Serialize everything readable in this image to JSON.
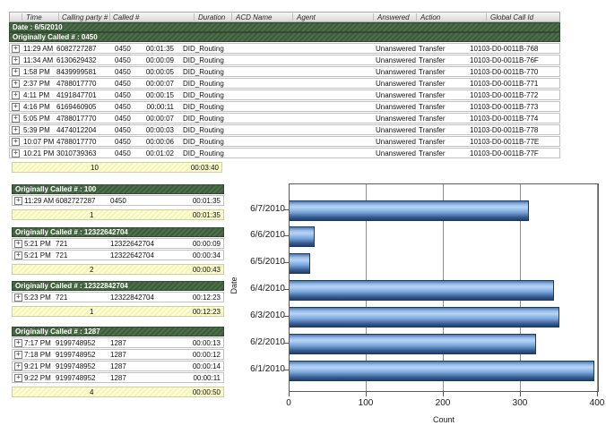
{
  "icons": {
    "expand_icon": "+"
  },
  "top_table": {
    "columns": [
      "Time",
      "Calling party #",
      "Called #",
      "Duration",
      "ACD Name",
      "Agent",
      "Answered",
      "Action",
      "Global Call Id"
    ],
    "date_header": "Date : 6/5/2010",
    "group_header": "Originally Called # : 0450",
    "rows": [
      {
        "time": "11:29 AM",
        "calling": "6082727287",
        "called": "0450",
        "duration": "00:01:35",
        "acd": "DID_Routing",
        "agent": "",
        "answered": "Unanswered",
        "action": "Transfer",
        "global_id": "10103-D0-0011B-768"
      },
      {
        "time": "11:34 AM",
        "calling": "6130629432",
        "called": "0450",
        "duration": "00:00:09",
        "acd": "DID_Routing",
        "agent": "",
        "answered": "Unanswered",
        "action": "Transfer",
        "global_id": "10103-D0-0011B-76F"
      },
      {
        "time": "1:58 PM",
        "calling": "8439999581",
        "called": "0450",
        "duration": "00:00:05",
        "acd": "DID_Routing",
        "agent": "",
        "answered": "Unanswered",
        "action": "Transfer",
        "global_id": "10103-D0-0011B-770"
      },
      {
        "time": "2:37 PM",
        "calling": "4788017770",
        "called": "0450",
        "duration": "00:00:07",
        "acd": "DID_Routing",
        "agent": "",
        "answered": "Unanswered",
        "action": "Transfer",
        "global_id": "10103-D0-0011B-771"
      },
      {
        "time": "4:11 PM",
        "calling": "4191847701",
        "called": "0450",
        "duration": "00:00:15",
        "acd": "DID_Routing",
        "agent": "",
        "answered": "Unanswered",
        "action": "Transfer",
        "global_id": "10103-D0-0011B-772"
      },
      {
        "time": "4:16 PM",
        "calling": "6169460905",
        "called": "0450",
        "duration": "00:00:11",
        "acd": "DID_Routing",
        "agent": "",
        "answered": "Unanswered",
        "action": "Transfer",
        "global_id": "10103-D0-0011B-773"
      },
      {
        "time": "5:05 PM",
        "calling": "4788017770",
        "called": "0450",
        "duration": "00:00:07",
        "acd": "DID_Routing",
        "agent": "",
        "answered": "Unanswered",
        "action": "Transfer",
        "global_id": "10103-D0-0011B-774"
      },
      {
        "time": "5:39 PM",
        "calling": "4474012204",
        "called": "0450",
        "duration": "00:00:03",
        "acd": "DID_Routing",
        "agent": "",
        "answered": "Unanswered",
        "action": "Transfer",
        "global_id": "10103-D0-0011B-778"
      },
      {
        "time": "10:07 PM",
        "calling": "4788017770",
        "called": "0450",
        "duration": "00:00:06",
        "acd": "DID_Routing",
        "agent": "",
        "answered": "Unanswered",
        "action": "Transfer",
        "global_id": "10103-D0-0011B-77E"
      },
      {
        "time": "10:21 PM",
        "calling": "3010739363",
        "called": "0450",
        "duration": "00:01:02",
        "acd": "DID_Routing",
        "agent": "",
        "answered": "Unanswered",
        "action": "Transfer",
        "global_id": "10103-D0-0011B-77F"
      }
    ],
    "summary": {
      "count": "10",
      "duration": "00:03:40"
    }
  },
  "groups": [
    {
      "header": "Originally Called # : 100",
      "rows": [
        {
          "time": "11:29 AM",
          "calling": "6082727287",
          "called": "0450",
          "duration": "00:01:35"
        }
      ],
      "summary": {
        "count": "1",
        "duration": "00:01:35"
      }
    },
    {
      "header": "Originally Called # : 12322642704",
      "rows": [
        {
          "time": "5:21 PM",
          "calling": "721",
          "called": "12322642704",
          "duration": "00:00:09"
        },
        {
          "time": "5:21 PM",
          "calling": "721",
          "called": "12322642704",
          "duration": "00:00:34"
        }
      ],
      "summary": {
        "count": "2",
        "duration": "00:00:43"
      }
    },
    {
      "header": "Originally Called # : 12322842704",
      "rows": [
        {
          "time": "5:23 PM",
          "calling": "721",
          "called": "12322842704",
          "duration": "00:12:23"
        }
      ],
      "summary": {
        "count": "1",
        "duration": "00:12:23"
      }
    },
    {
      "header": "Originally Called # : 1287",
      "rows": [
        {
          "time": "7:17 PM",
          "calling": "9199748952",
          "called": "1287",
          "duration": "00:00:13"
        },
        {
          "time": "7:18 PM",
          "calling": "9199748952",
          "called": "1287",
          "duration": "00:00:12"
        },
        {
          "time": "9:21 PM",
          "calling": "9199748952",
          "called": "1287",
          "duration": "00:00:14"
        },
        {
          "time": "9:22 PM",
          "calling": "9199748952",
          "called": "1287",
          "duration": "00:00:11"
        }
      ],
      "summary": {
        "count": "4",
        "duration": "00:00:50"
      }
    }
  ],
  "chart_data": {
    "type": "bar",
    "orientation": "horizontal",
    "categories": [
      "6/7/2010",
      "6/6/2010",
      "6/5/2010",
      "6/4/2010",
      "6/3/2010",
      "6/2/2010",
      "6/1/2010"
    ],
    "values": [
      310,
      32,
      27,
      343,
      350,
      320,
      395
    ],
    "title": "",
    "xlabel": "Count",
    "ylabel": "Date",
    "xlim": [
      0,
      400
    ],
    "xticks": [
      0,
      100,
      200,
      300,
      400
    ],
    "grid": "vertical",
    "legend": "none",
    "bar_color": "#79a6db"
  }
}
